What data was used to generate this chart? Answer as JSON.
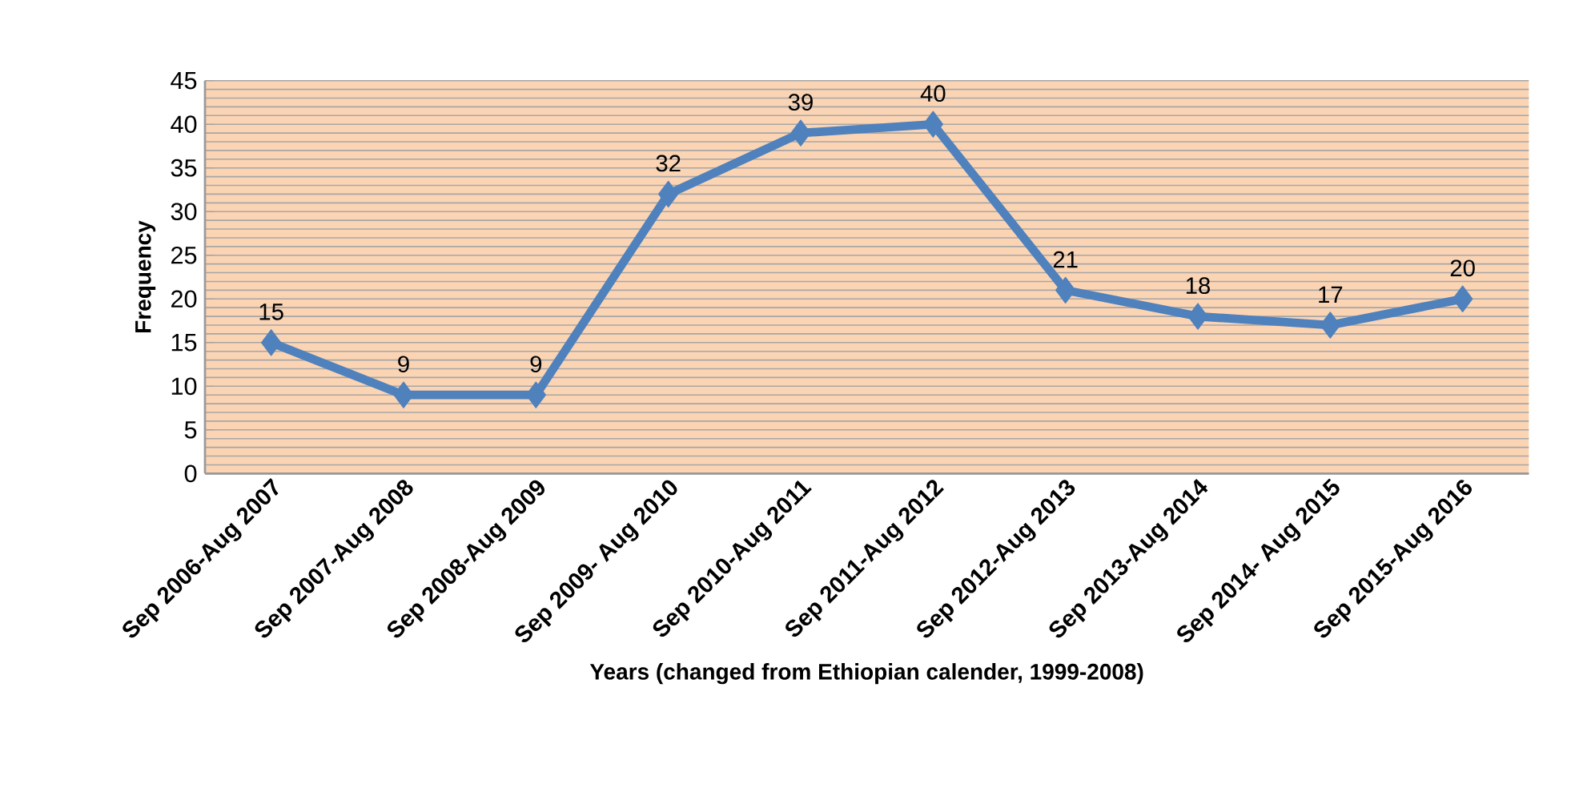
{
  "chart_data": {
    "type": "line",
    "xlabel": "Years (changed from Ethiopian calender,  1999-2008)",
    "ylabel": "Frequency",
    "categories": [
      "Sep 2006-Aug 2007",
      "Sep 2007-Aug 2008",
      "Sep 2008-Aug 2009",
      "Sep 2009- Aug 2010",
      "Sep 2010-Aug 2011",
      "Sep 2011-Aug 2012",
      "Sep 2012-Aug 2013",
      "Sep 2013-Aug 2014",
      "Sep 2014- Aug 2015",
      "Sep 2015-Aug 2016"
    ],
    "values": [
      15,
      9,
      9,
      32,
      39,
      40,
      21,
      18,
      17,
      20
    ],
    "color": "#4f81bd",
    "ylim": [
      0,
      45
    ],
    "yticks": [
      0,
      5,
      10,
      15,
      20,
      25,
      30,
      35,
      40,
      45
    ],
    "grid": "y",
    "marker": "diamond",
    "data_labels": true
  }
}
